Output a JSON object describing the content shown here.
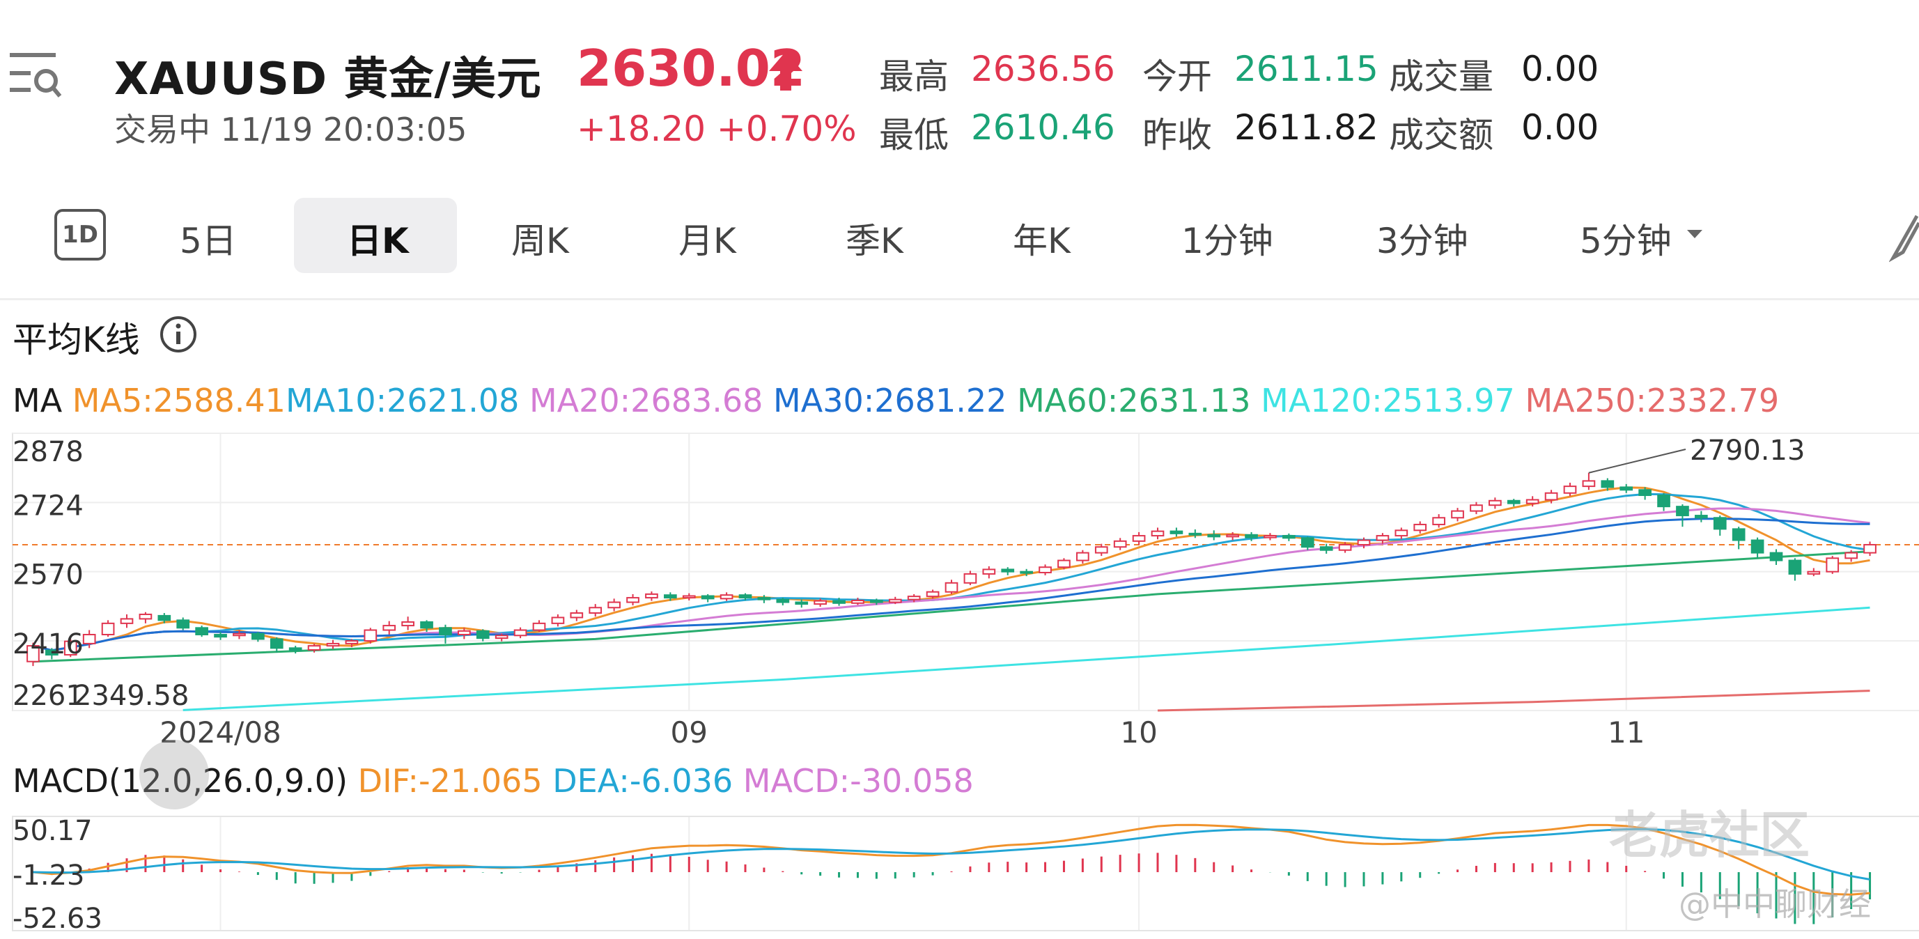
{
  "header": {
    "symbol": "XAUUSD  黄金/美元",
    "status": "交易中  11/19 20:03:05",
    "price": "2630.02",
    "change": "+18.20  +0.70%",
    "stats": {
      "high_label": "最高",
      "high": "2636.56",
      "low_label": "最低",
      "low": "2610.46",
      "open_label": "今开",
      "open": "2611.15",
      "prev_close_label": "昨收",
      "prev_close": "2611.82",
      "volume_label": "成交量",
      "volume": "0.00",
      "turnover_label": "成交额",
      "turnover": "0.00"
    }
  },
  "tabs": {
    "one_day": "1D",
    "items": [
      "5日",
      "日K",
      "周K",
      "月K",
      "季K",
      "年K",
      "1分钟",
      "3分钟",
      "5分钟"
    ],
    "active": "日K",
    "dropdown_icon": "caret-down-icon",
    "tool_icon": "pen-icon"
  },
  "colors": {
    "up": "#e0354f",
    "down": "#1aa376",
    "ma5": "#f0922b",
    "ma10": "#23a6d5",
    "ma20": "#d47cd4",
    "ma30": "#1e6fd0",
    "ma60": "#2aad6f",
    "ma120": "#3ee3e3",
    "ma250": "#e56b6b",
    "dif": "#f0922b",
    "dea": "#23a6d5",
    "macd": "#d47cd4",
    "price_line": "#f07a2b"
  },
  "chart": {
    "title": "平均K线",
    "ma_prefix": "MA",
    "ma_legend": [
      {
        "key": "ma5",
        "text": "MA5:2588.41"
      },
      {
        "key": "ma10",
        "text": "MA10:2621.08"
      },
      {
        "key": "ma20",
        "text": "MA20:2683.68"
      },
      {
        "key": "ma30",
        "text": "MA30:2681.22"
      },
      {
        "key": "ma60",
        "text": "MA60:2631.13"
      },
      {
        "key": "ma120",
        "text": "MA120:2513.97"
      },
      {
        "key": "ma250",
        "text": "MA250:2332.79"
      }
    ],
    "macd_prefix": "MACD(12.0,26.0,9.0)",
    "macd_legend": [
      {
        "key": "dif",
        "text": "DIF:-21.065"
      },
      {
        "key": "dea",
        "text": "DEA:-6.036"
      },
      {
        "key": "macd",
        "text": "MACD:-30.058"
      }
    ],
    "watermark": "老虎社区",
    "author": "@中中聊财经"
  },
  "chart_data": {
    "type": "line",
    "price_axis": {
      "ticks": [
        2878,
        2724,
        2570,
        2416,
        2261
      ],
      "ylim": [
        2261,
        2878
      ],
      "grid": true
    },
    "x_ticks": [
      "2024/08",
      "09",
      "10",
      "11"
    ],
    "annotations": {
      "high_label": "2790.13",
      "low_label": "2349.58"
    },
    "current_price": 2630.02,
    "candles": [
      [
        2370,
        2405,
        2360,
        2412
      ],
      [
        2395,
        2385,
        2375,
        2400
      ],
      [
        2385,
        2415,
        2380,
        2420
      ],
      [
        2410,
        2430,
        2400,
        2440
      ],
      [
        2430,
        2455,
        2425,
        2462
      ],
      [
        2455,
        2465,
        2445,
        2475
      ],
      [
        2465,
        2475,
        2455,
        2480
      ],
      [
        2472,
        2462,
        2455,
        2478
      ],
      [
        2462,
        2445,
        2440,
        2468
      ],
      [
        2445,
        2430,
        2425,
        2450
      ],
      [
        2430,
        2425,
        2418,
        2436
      ],
      [
        2428,
        2432,
        2420,
        2440
      ],
      [
        2432,
        2420,
        2414,
        2436
      ],
      [
        2420,
        2400,
        2390,
        2424
      ],
      [
        2400,
        2395,
        2388,
        2405
      ],
      [
        2396,
        2405,
        2390,
        2410
      ],
      [
        2405,
        2410,
        2398,
        2418
      ],
      [
        2410,
        2416,
        2402,
        2420
      ],
      [
        2416,
        2440,
        2410,
        2445
      ],
      [
        2440,
        2450,
        2430,
        2460
      ],
      [
        2450,
        2458,
        2440,
        2470
      ],
      [
        2458,
        2445,
        2436,
        2462
      ],
      [
        2445,
        2430,
        2410,
        2452
      ],
      [
        2430,
        2438,
        2420,
        2445
      ],
      [
        2438,
        2422,
        2415,
        2442
      ],
      [
        2422,
        2428,
        2415,
        2432
      ],
      [
        2428,
        2440,
        2422,
        2446
      ],
      [
        2440,
        2455,
        2436,
        2462
      ],
      [
        2455,
        2468,
        2448,
        2475
      ],
      [
        2468,
        2478,
        2460,
        2485
      ],
      [
        2478,
        2490,
        2470,
        2498
      ],
      [
        2490,
        2502,
        2482,
        2510
      ],
      [
        2502,
        2512,
        2495,
        2520
      ],
      [
        2512,
        2520,
        2505,
        2526
      ],
      [
        2518,
        2512,
        2505,
        2524
      ],
      [
        2512,
        2516,
        2506,
        2522
      ],
      [
        2516,
        2510,
        2502,
        2520
      ],
      [
        2510,
        2518,
        2505,
        2524
      ],
      [
        2518,
        2512,
        2506,
        2522
      ],
      [
        2512,
        2508,
        2500,
        2518
      ],
      [
        2508,
        2502,
        2495,
        2512
      ],
      [
        2502,
        2498,
        2490,
        2508
      ],
      [
        2498,
        2505,
        2492,
        2510
      ],
      [
        2505,
        2500,
        2494,
        2512
      ],
      [
        2500,
        2506,
        2496,
        2512
      ],
      [
        2506,
        2502,
        2496,
        2510
      ],
      [
        2502,
        2508,
        2498,
        2514
      ],
      [
        2508,
        2515,
        2502,
        2520
      ],
      [
        2515,
        2525,
        2510,
        2530
      ],
      [
        2525,
        2545,
        2520,
        2552
      ],
      [
        2545,
        2565,
        2540,
        2572
      ],
      [
        2565,
        2575,
        2555,
        2582
      ],
      [
        2575,
        2570,
        2562,
        2580
      ],
      [
        2570,
        2568,
        2560,
        2576
      ],
      [
        2568,
        2580,
        2562,
        2586
      ],
      [
        2580,
        2595,
        2575,
        2600
      ],
      [
        2595,
        2612,
        2588,
        2618
      ],
      [
        2612,
        2625,
        2605,
        2632
      ],
      [
        2625,
        2638,
        2618,
        2645
      ],
      [
        2638,
        2650,
        2630,
        2658
      ],
      [
        2650,
        2660,
        2642,
        2668
      ],
      [
        2660,
        2655,
        2648,
        2668
      ],
      [
        2655,
        2652,
        2645,
        2664
      ],
      [
        2652,
        2648,
        2640,
        2662
      ],
      [
        2648,
        2652,
        2640,
        2658
      ],
      [
        2652,
        2646,
        2638,
        2658
      ],
      [
        2646,
        2650,
        2640,
        2656
      ],
      [
        2650,
        2645,
        2638,
        2655
      ],
      [
        2645,
        2625,
        2618,
        2648
      ],
      [
        2625,
        2618,
        2610,
        2632
      ],
      [
        2618,
        2630,
        2612,
        2636
      ],
      [
        2630,
        2640,
        2622,
        2646
      ],
      [
        2640,
        2650,
        2632,
        2656
      ],
      [
        2650,
        2662,
        2642,
        2668
      ],
      [
        2662,
        2675,
        2655,
        2682
      ],
      [
        2675,
        2690,
        2668,
        2698
      ],
      [
        2690,
        2705,
        2682,
        2712
      ],
      [
        2705,
        2718,
        2698,
        2725
      ],
      [
        2718,
        2728,
        2710,
        2735
      ],
      [
        2728,
        2722,
        2715,
        2732
      ],
      [
        2722,
        2730,
        2715,
        2738
      ],
      [
        2730,
        2745,
        2722,
        2752
      ],
      [
        2745,
        2760,
        2738,
        2768
      ],
      [
        2760,
        2772,
        2752,
        2790
      ],
      [
        2772,
        2758,
        2750,
        2778
      ],
      [
        2758,
        2752,
        2745,
        2765
      ],
      [
        2752,
        2740,
        2730,
        2758
      ],
      [
        2740,
        2715,
        2705,
        2745
      ],
      [
        2715,
        2695,
        2670,
        2720
      ],
      [
        2695,
        2690,
        2680,
        2705
      ],
      [
        2690,
        2665,
        2650,
        2695
      ],
      [
        2665,
        2640,
        2620,
        2670
      ],
      [
        2640,
        2612,
        2600,
        2646
      ],
      [
        2612,
        2595,
        2585,
        2620
      ],
      [
        2595,
        2565,
        2550,
        2600
      ],
      [
        2565,
        2570,
        2560,
        2578
      ],
      [
        2570,
        2600,
        2565,
        2605
      ],
      [
        2600,
        2612,
        2592,
        2618
      ],
      [
        2612,
        2630,
        2605,
        2637
      ]
    ],
    "macd_axis": {
      "ticks": [
        50.17,
        -1.23,
        -52.63
      ],
      "ylim": [
        -52.63,
        50.17
      ]
    }
  }
}
